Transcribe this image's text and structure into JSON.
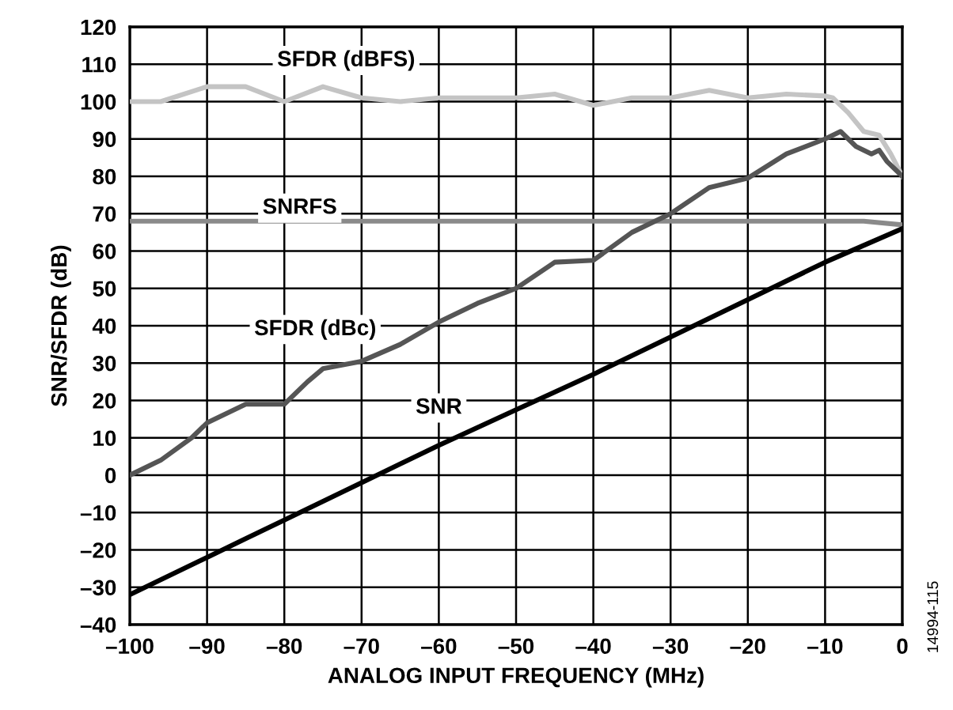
{
  "chart_data": {
    "type": "line",
    "xlabel": "ANALOG INPUT FREQUENCY (MHz)",
    "ylabel": "SNR/SFDR (dB)",
    "xlim": [
      -100,
      0
    ],
    "ylim": [
      -40,
      120
    ],
    "xticks": [
      {
        "value": -100,
        "label": "–100"
      },
      {
        "value": -90,
        "label": "–90"
      },
      {
        "value": -80,
        "label": "–80"
      },
      {
        "value": -70,
        "label": "–70"
      },
      {
        "value": -60,
        "label": "–60"
      },
      {
        "value": -50,
        "label": "–50"
      },
      {
        "value": -40,
        "label": "–40"
      },
      {
        "value": -30,
        "label": "–30"
      },
      {
        "value": -20,
        "label": "–20"
      },
      {
        "value": -10,
        "label": "–10"
      },
      0
    ],
    "yticks": [
      {
        "value": -40,
        "label": "–40"
      },
      {
        "value": -30,
        "label": "–30"
      },
      {
        "value": -20,
        "label": "–20"
      },
      {
        "value": -10,
        "label": "–10"
      },
      0,
      10,
      20,
      30,
      40,
      50,
      60,
      70,
      80,
      90,
      100,
      110,
      120
    ],
    "grid": true,
    "legend": false,
    "marker": "none",
    "line_style": "solid",
    "annotations": [
      "14994-115"
    ],
    "series": [
      {
        "name": "SFDR (dBFS)",
        "color": "#c4c4c4",
        "x": [
          -100,
          -96,
          -90,
          -85,
          -80,
          -75,
          -70,
          -65,
          -60,
          -50,
          -45,
          -40,
          -35,
          -30,
          -25,
          -20,
          -15,
          -10,
          -9,
          -7,
          -5,
          -3,
          -1.5,
          0
        ],
        "values": [
          100,
          100,
          104,
          104,
          100,
          104,
          101,
          100,
          101,
          101,
          102,
          99,
          101,
          101,
          103,
          101,
          102,
          101.5,
          101,
          97,
          92,
          91,
          86,
          80
        ]
      },
      {
        "name": "SNRFS",
        "color": "#8a8a8a",
        "x": [
          -100,
          -5,
          0
        ],
        "values": [
          68,
          68,
          67
        ]
      },
      {
        "name": "SFDR (dBc)",
        "color": "#555555",
        "x": [
          -100,
          -96,
          -92,
          -90,
          -85,
          -80,
          -77,
          -75,
          -70,
          -65,
          -60,
          -55,
          -50,
          -45,
          -40,
          -35,
          -30,
          -25,
          -20,
          -15,
          -10,
          -8,
          -6,
          -4,
          -3,
          -2,
          -1,
          0
        ],
        "values": [
          0,
          4,
          10,
          14,
          19,
          19,
          25,
          28.5,
          30.5,
          35,
          41,
          46,
          50,
          57,
          57.5,
          65,
          70,
          77,
          79.5,
          86,
          90,
          92,
          88,
          86,
          87,
          84,
          82,
          80
        ]
      },
      {
        "name": "SNR",
        "color": "#000000",
        "x": [
          -100,
          -90,
          -85,
          -80,
          -70,
          -60,
          -50,
          -40,
          -30,
          -20,
          -10,
          -5,
          0
        ],
        "values": [
          -32,
          -22,
          -17,
          -12,
          -2,
          8,
          17.5,
          27,
          37,
          47,
          57,
          61.5,
          66
        ]
      }
    ]
  }
}
